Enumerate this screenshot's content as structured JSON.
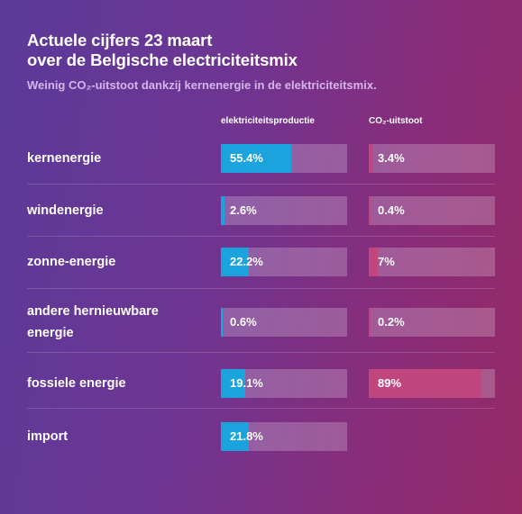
{
  "title_line1": "Actuele cijfers 23 maart",
  "title_line2": "over de Belgische electriciteitsmix",
  "subtitle": "Weinig CO₂-uitstoot dankzij kernenergie in de elektriciteitsmix.",
  "colors": {
    "production": "#1aa3dc",
    "co2": "#c2467e"
  },
  "chart_data": {
    "type": "bar",
    "title": "Actuele cijfers 23 maart over de Belgische electriciteitsmix",
    "subtitle": "Weinig CO₂-uitstoot dankzij kernenergie in de elektriciteitsmix.",
    "categories": [
      "kernenergie",
      "windenergie",
      "zonne-energie",
      "andere hernieuwbare energie",
      "fossiele energie",
      "import"
    ],
    "series": [
      {
        "name": "elektriciteitsproductie",
        "values": [
          55.4,
          2.6,
          22.2,
          0.6,
          19.1,
          21.8
        ],
        "labels": [
          "55.4%",
          "2.6%",
          "22.2%",
          "0.6%",
          "19.1%",
          "21.8%"
        ]
      },
      {
        "name": "CO₂-uitstoot",
        "values": [
          3.4,
          0.4,
          7,
          0.2,
          89,
          null
        ],
        "labels": [
          "3.4%",
          "0.4%",
          "7%",
          "0.2%",
          "89%",
          null
        ]
      }
    ],
    "xlim": [
      0,
      100
    ]
  }
}
